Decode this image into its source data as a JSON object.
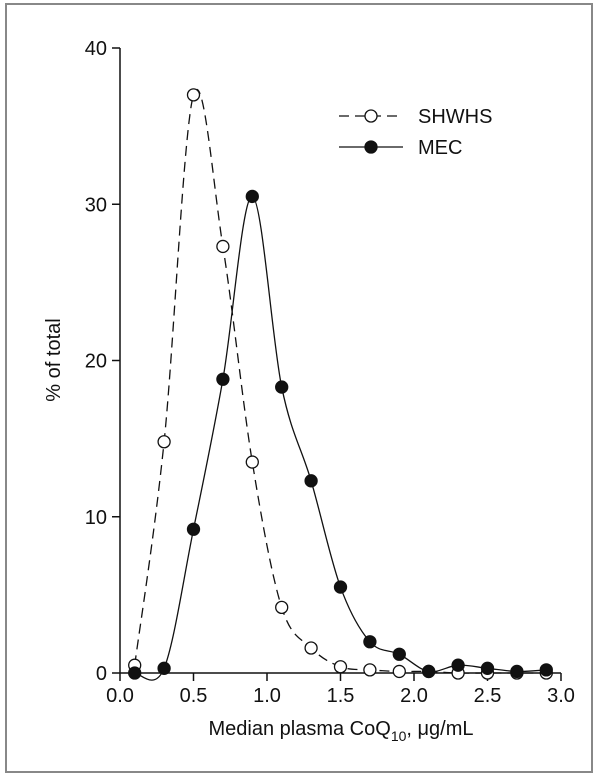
{
  "chart_data": {
    "type": "line",
    "title": "",
    "xlabel": {
      "prefix": "Median plasma CoQ",
      "subscript": "10",
      "suffix": ", μg/mL"
    },
    "ylabel": "% of total",
    "xlim": [
      0.0,
      3.0
    ],
    "ylim": [
      0,
      40
    ],
    "xticks": [
      "0.0",
      "0.5",
      "1.0",
      "1.5",
      "2.0",
      "2.5",
      "3.0"
    ],
    "yticks": [
      "0",
      "10",
      "20",
      "30",
      "40"
    ],
    "grid": false,
    "legend_position": "top-right",
    "series": [
      {
        "name": "SHWHS",
        "marker": "open-circle",
        "line_style": "dashed",
        "color": "#111111",
        "x": [
          0.1,
          0.3,
          0.5,
          0.7,
          0.9,
          1.1,
          1.3,
          1.5,
          1.7,
          1.9,
          2.1,
          2.3,
          2.5,
          2.7,
          2.9
        ],
        "y": [
          0.5,
          14.8,
          37.0,
          27.3,
          13.5,
          4.2,
          1.6,
          0.4,
          0.2,
          0.1,
          0.1,
          0.0,
          0.0,
          0.0,
          0.0
        ]
      },
      {
        "name": "MEC",
        "marker": "filled-circle",
        "line_style": "solid",
        "color": "#111111",
        "x": [
          0.1,
          0.3,
          0.5,
          0.7,
          0.9,
          1.1,
          1.3,
          1.5,
          1.7,
          1.9,
          2.1,
          2.3,
          2.5,
          2.7,
          2.9
        ],
        "y": [
          0.0,
          0.3,
          9.2,
          18.8,
          30.5,
          18.3,
          12.3,
          5.5,
          2.0,
          1.2,
          0.1,
          0.5,
          0.3,
          0.1,
          0.2
        ]
      }
    ]
  }
}
